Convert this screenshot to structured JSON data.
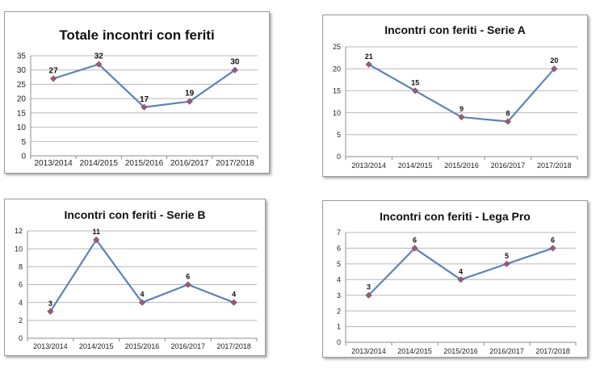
{
  "chart_data": [
    {
      "type": "line",
      "title": "Totale incontri con feriti",
      "categories": [
        "2013/2014",
        "2014/2015",
        "2015/2016",
        "2016/2017",
        "2017/2018"
      ],
      "values": [
        27,
        32,
        17,
        19,
        30
      ],
      "data_labels": [
        "27",
        "32",
        "17",
        "19",
        "30"
      ],
      "ylim": [
        0,
        35
      ],
      "yticks": [
        "0",
        "5",
        "10",
        "15",
        "20",
        "25",
        "30",
        "35"
      ],
      "ystep": 5,
      "grid": true,
      "line_color": "#5b84b6",
      "marker_color": "#9c5a78"
    },
    {
      "type": "line",
      "title": "Incontri con feriti - Serie A",
      "categories": [
        "2013/2014",
        "2014/2015",
        "2015/2016",
        "2016/2017",
        "2017/2018"
      ],
      "values": [
        21,
        15,
        9,
        8,
        20
      ],
      "data_labels": [
        "21",
        "15",
        "9",
        "8",
        "20"
      ],
      "ylim": [
        0,
        25
      ],
      "yticks": [
        "0",
        "5",
        "10",
        "15",
        "20",
        "25"
      ],
      "ystep": 5,
      "grid": true,
      "line_color": "#5b84b6",
      "marker_color": "#9c5a78"
    },
    {
      "type": "line",
      "title": "Incontri con feriti  - Serie B",
      "categories": [
        "2013/2014",
        "2014/2015",
        "2015/2016",
        "2016/2017",
        "2017/2018"
      ],
      "values": [
        3,
        11,
        4,
        6,
        4
      ],
      "data_labels": [
        "3",
        "11",
        "4",
        "6",
        "4"
      ],
      "ylim": [
        0,
        12
      ],
      "yticks": [
        "0",
        "2",
        "4",
        "6",
        "8",
        "10",
        "12"
      ],
      "ystep": 2,
      "grid": true,
      "line_color": "#5b84b6",
      "marker_color": "#9c5a78"
    },
    {
      "type": "line",
      "title": "Incontri con feriti  - Lega Pro",
      "categories": [
        "2013/2014",
        "2014/2015",
        "2015/2016",
        "2016/2017",
        "2017/2018"
      ],
      "values": [
        3,
        6,
        4,
        5,
        6
      ],
      "data_labels": [
        "3",
        "6",
        "4",
        "5",
        "6"
      ],
      "ylim": [
        0,
        7
      ],
      "yticks": [
        "0",
        "1",
        "2",
        "3",
        "4",
        "5",
        "6",
        "7"
      ],
      "ystep": 1,
      "grid": true,
      "line_color": "#5b84b6",
      "marker_color": "#9c5a78"
    }
  ]
}
